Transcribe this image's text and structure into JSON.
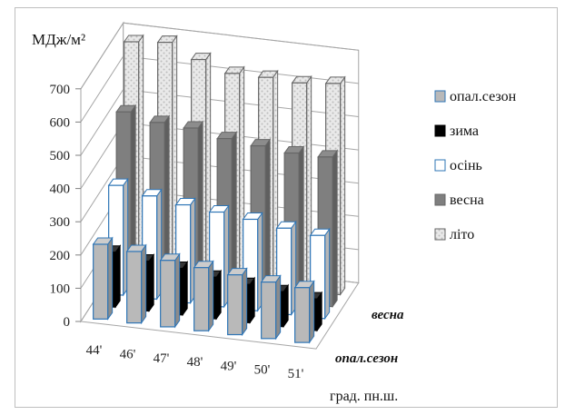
{
  "chart_data": {
    "type": "bar",
    "subtype": "3d-column",
    "ylabel": "МДж/м²",
    "xlabel": "град. пн.ш.",
    "categories": [
      "44'",
      "46'",
      "47'",
      "48'",
      "49'",
      "50'",
      "51'"
    ],
    "depth_labels": [
      "весна",
      "опал.сезон"
    ],
    "ylim": [
      0,
      700
    ],
    "yticks": [
      "0",
      "100",
      "200",
      "300",
      "400",
      "500",
      "600",
      "700"
    ],
    "legend_position": "right",
    "series": [
      {
        "name": "опал.сезон",
        "color": "#b9b9b9",
        "values": [
          225,
          215,
          200,
          190,
          180,
          170,
          165
        ]
      },
      {
        "name": "зима",
        "color": "#000000",
        "values": [
          165,
          150,
          140,
          125,
          115,
          105,
          95
        ]
      },
      {
        "name": "осінь",
        "color": "#ffffff",
        "values": [
          330,
          310,
          295,
          285,
          275,
          260,
          250
        ]
      },
      {
        "name": "весна",
        "color": "#7f7f7f",
        "values": [
          515,
          495,
          490,
          470,
          460,
          450,
          450
        ]
      },
      {
        "name": "літо",
        "color": "#e6e6e6",
        "values": [
          690,
          700,
          660,
          630,
          630,
          625,
          635
        ]
      }
    ]
  }
}
